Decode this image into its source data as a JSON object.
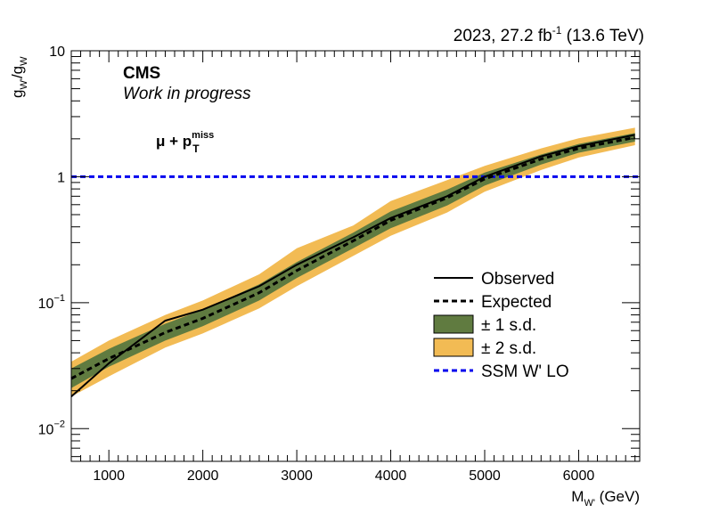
{
  "header": {
    "lumi_prefix": "2023, 27.2 fb",
    "lumi_exp": "-1",
    "lumi_suffix": " (13.6 TeV)",
    "experiment": "CMS",
    "status": "Work in progress",
    "channel_mu": "μ + p",
    "channel_sup": "miss",
    "channel_sub": "T"
  },
  "axes": {
    "xlabel_main": "M",
    "xlabel_sub": "W'",
    "xlabel_unit": " (GeV)",
    "ylabel_g1": "g",
    "ylabel_s1": "W'",
    "ylabel_mid": "/g",
    "ylabel_s2": "W"
  },
  "chart_data": {
    "type": "line",
    "xlim": [
      600,
      6650
    ],
    "ylim": [
      0.0055,
      10
    ],
    "yscale": "log",
    "xticks": [
      1000,
      2000,
      3000,
      4000,
      5000,
      6000
    ],
    "xtick_labels": [
      "1000",
      "2000",
      "3000",
      "4000",
      "5000",
      "6000"
    ],
    "yticks": [
      {
        "value": 0.01,
        "base": "10",
        "exp": "−2"
      },
      {
        "value": 0.1,
        "base": "10",
        "exp": "−1"
      },
      {
        "value": 1,
        "base": "1",
        "exp": ""
      },
      {
        "value": 10,
        "base": "10",
        "exp": ""
      }
    ],
    "x": [
      600,
      1000,
      1600,
      2000,
      2600,
      3000,
      3600,
      4000,
      4600,
      5000,
      5600,
      6000,
      6600
    ],
    "observed": [
      0.018,
      0.033,
      0.072,
      0.088,
      0.135,
      0.2,
      0.33,
      0.47,
      0.7,
      1.0,
      1.45,
      1.75,
      2.15
    ],
    "expected": [
      0.025,
      0.036,
      0.058,
      0.075,
      0.12,
      0.18,
      0.31,
      0.45,
      0.68,
      0.96,
      1.38,
      1.68,
      2.05
    ],
    "band1_low": [
      0.021,
      0.031,
      0.05,
      0.065,
      0.104,
      0.157,
      0.27,
      0.39,
      0.59,
      0.85,
      1.25,
      1.55,
      1.9
    ],
    "band1_high": [
      0.03,
      0.043,
      0.068,
      0.088,
      0.14,
      0.21,
      0.36,
      0.53,
      0.79,
      1.08,
      1.5,
      1.82,
      2.22
    ],
    "band2_low": [
      0.018,
      0.026,
      0.044,
      0.057,
      0.09,
      0.135,
      0.235,
      0.34,
      0.52,
      0.76,
      1.13,
      1.42,
      1.78
    ],
    "band2_high": [
      0.034,
      0.05,
      0.08,
      0.104,
      0.168,
      0.27,
      0.41,
      0.64,
      0.94,
      1.22,
      1.68,
      2.02,
      2.45
    ],
    "ssm_value": 1,
    "series": [
      {
        "name": "Observed",
        "color": "#000000",
        "style": "solid"
      },
      {
        "name": "Expected",
        "color": "#000000",
        "style": "dashed"
      },
      {
        "name": "± 1 s.d.",
        "color": "#607b40",
        "style": "fill"
      },
      {
        "name": "± 2 s.d.",
        "color": "#f2bb54",
        "style": "fill"
      },
      {
        "name": "SSM W' LO",
        "color": "#0000ee",
        "style": "dashed"
      }
    ],
    "legend_position": "center-right",
    "grid": false
  }
}
